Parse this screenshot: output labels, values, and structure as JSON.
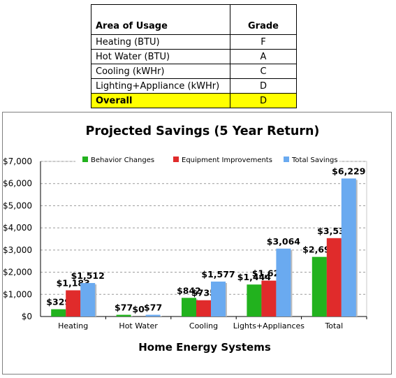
{
  "grade_table": {
    "headers": [
      "Area of Usage",
      "Grade"
    ],
    "rows": [
      {
        "area": "Heating (BTU)",
        "grade": "F"
      },
      {
        "area": "Hot Water (BTU)",
        "grade": "A"
      },
      {
        "area": "Cooling (kWHr)",
        "grade": "C"
      },
      {
        "area": "Lighting+Appliance (kWHr)",
        "grade": "D"
      }
    ],
    "overall": {
      "area": "Overall",
      "grade": "D"
    },
    "highlight_color": "#ffff00"
  },
  "chart_data": {
    "type": "bar",
    "title": "Projected Savings (5 Year Return)",
    "xlabel": "Home Energy Systems",
    "ylabel": "",
    "categories": [
      "Heating",
      "Hot Water",
      "Cooling",
      "Lights+Appliances",
      "Total"
    ],
    "series": [
      {
        "name": "Behavior    Changes",
        "color": "#22b21e",
        "values": [
          329,
          77,
          842,
          1444,
          2691
        ],
        "labels": [
          "$329",
          "$77",
          "$842",
          "$1,444",
          "$2,691"
        ]
      },
      {
        "name": "Equipment Improvements",
        "color": "#e02b2b",
        "values": [
          1183,
          0,
          735,
          1620,
          3538
        ],
        "labels": [
          "$1,183",
          "$0",
          "$735",
          "$1,620",
          "$3,538"
        ]
      },
      {
        "name": "Total Savings",
        "color": "#6aaaf0",
        "values": [
          1512,
          77,
          1577,
          3064,
          6229
        ],
        "labels": [
          "$1,512",
          "$77",
          "$1,577",
          "$3,064",
          "$6,229"
        ]
      }
    ],
    "ylim": [
      0,
      7000
    ],
    "yticks": [
      0,
      1000,
      2000,
      3000,
      4000,
      5000,
      6000,
      7000
    ],
    "ytick_labels": [
      "$0",
      "$1,000",
      "$2,000",
      "$3,000",
      "$4,000",
      "$5,000",
      "$6,000",
      "$7,000"
    ],
    "grid": true,
    "legend_position": "top"
  }
}
